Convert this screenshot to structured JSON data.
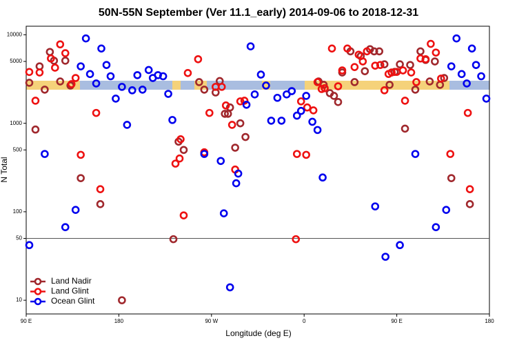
{
  "chart_data": {
    "type": "scatter",
    "title": "50N-55N September (Ver 11.1_early)   2014-09-06 to 2018-12-31",
    "x_label": "Longitude (deg E)",
    "y_label": "N Total",
    "log_y": true,
    "xlim": [
      90,
      540
    ],
    "ylim": [
      7,
      12500
    ],
    "xticks": [
      {
        "value": 90,
        "label": "90 E"
      },
      {
        "value": 180,
        "label": "180"
      },
      {
        "value": 270,
        "label": "90 W"
      },
      {
        "value": 360,
        "label": "0"
      },
      {
        "value": 450,
        "label": "90 E"
      },
      {
        "value": 540,
        "label": "180"
      }
    ],
    "yticks": [
      10,
      50,
      100,
      500,
      1000,
      5000,
      10000
    ],
    "hline": 50,
    "legend": "lower left",
    "series": [
      {
        "name": "Land Nadir",
        "color": "#a0282d",
        "x": [
          93,
          99,
          103,
          108,
          113,
          117,
          123,
          128,
          133,
          143,
          162,
          183,
          233,
          238,
          243,
          258,
          263,
          274,
          278,
          283,
          286,
          288,
          293,
          298,
          303,
          374,
          379,
          385,
          389,
          393,
          397,
          405,
          409,
          415,
          419,
          424,
          428,
          433,
          438,
          443,
          448,
          453,
          458,
          463,
          468,
          473,
          478,
          482,
          487,
          492,
          496,
          503,
          521
        ],
        "values": [
          2870,
          850,
          4400,
          2400,
          6400,
          5100,
          2970,
          5100,
          2670,
          240,
          122,
          10,
          49,
          620,
          500,
          2920,
          2400,
          2230,
          3000,
          1280,
          1280,
          1510,
          530,
          1000,
          700,
          2970,
          2720,
          2190,
          2040,
          1740,
          3750,
          6500,
          2920,
          5750,
          3880,
          6870,
          6500,
          6500,
          4640,
          2720,
          3810,
          4640,
          870,
          4560,
          2400,
          6500,
          5200,
          2970,
          5000,
          2720,
          3250,
          240,
          122
        ]
      },
      {
        "name": "Land Glint",
        "color": "#ee1111",
        "x": [
          93,
          99,
          103,
          114,
          118,
          123,
          128,
          134,
          138,
          143,
          158,
          162,
          235,
          239,
          240,
          243,
          247,
          257,
          263,
          268,
          274,
          280,
          284,
          290,
          293,
          298,
          302,
          352,
          353,
          357,
          362,
          363,
          369,
          373,
          377,
          380,
          387,
          393,
          397,
          402,
          409,
          413,
          417,
          421,
          429,
          434,
          438,
          442,
          445,
          450,
          456,
          458,
          464,
          469,
          473,
          478,
          483,
          488,
          493,
          502,
          519,
          521
        ],
        "values": [
          3800,
          1800,
          3750,
          5400,
          4250,
          7800,
          6200,
          2770,
          3250,
          440,
          1310,
          180,
          350,
          400,
          660,
          91,
          3700,
          5300,
          470,
          1310,
          2580,
          2580,
          1590,
          960,
          300,
          1770,
          1800,
          49,
          450,
          1770,
          440,
          1510,
          1400,
          2920,
          2440,
          2490,
          7000,
          2620,
          3960,
          7000,
          4320,
          5960,
          5000,
          6500,
          4480,
          4560,
          2360,
          3610,
          3750,
          3810,
          3960,
          1800,
          3750,
          2920,
          5400,
          5300,
          7900,
          6300,
          3200,
          450,
          1310,
          180
        ]
      },
      {
        "name": "Ocean Glint",
        "color": "#0000ee",
        "x": [
          93,
          108,
          128,
          138,
          143,
          148,
          152,
          158,
          163,
          168,
          172,
          177,
          183,
          188,
          193,
          198,
          203,
          209,
          213,
          218,
          223,
          228,
          232,
          263,
          279,
          282,
          288,
          294,
          296,
          304,
          308,
          312,
          318,
          323,
          328,
          334,
          338,
          343,
          348,
          353,
          357,
          362,
          368,
          373,
          378,
          429,
          439,
          453,
          468,
          488,
          498,
          503,
          508,
          513,
          518,
          523,
          527,
          532,
          537
        ],
        "values": [
          42,
          450,
          67,
          105,
          4400,
          9100,
          3600,
          2820,
          7000,
          4560,
          3400,
          1900,
          2580,
          960,
          2360,
          3500,
          2400,
          4000,
          3250,
          3500,
          3400,
          2150,
          1090,
          450,
          375,
          96,
          14,
          210,
          270,
          1620,
          7400,
          2120,
          3550,
          2670,
          1070,
          1940,
          1070,
          2120,
          2310,
          1220,
          1380,
          2040,
          1040,
          840,
          244,
          115,
          31,
          42,
          450,
          67,
          105,
          4400,
          9100,
          3600,
          2820,
          7000,
          4560,
          3400,
          1900
        ]
      }
    ]
  }
}
